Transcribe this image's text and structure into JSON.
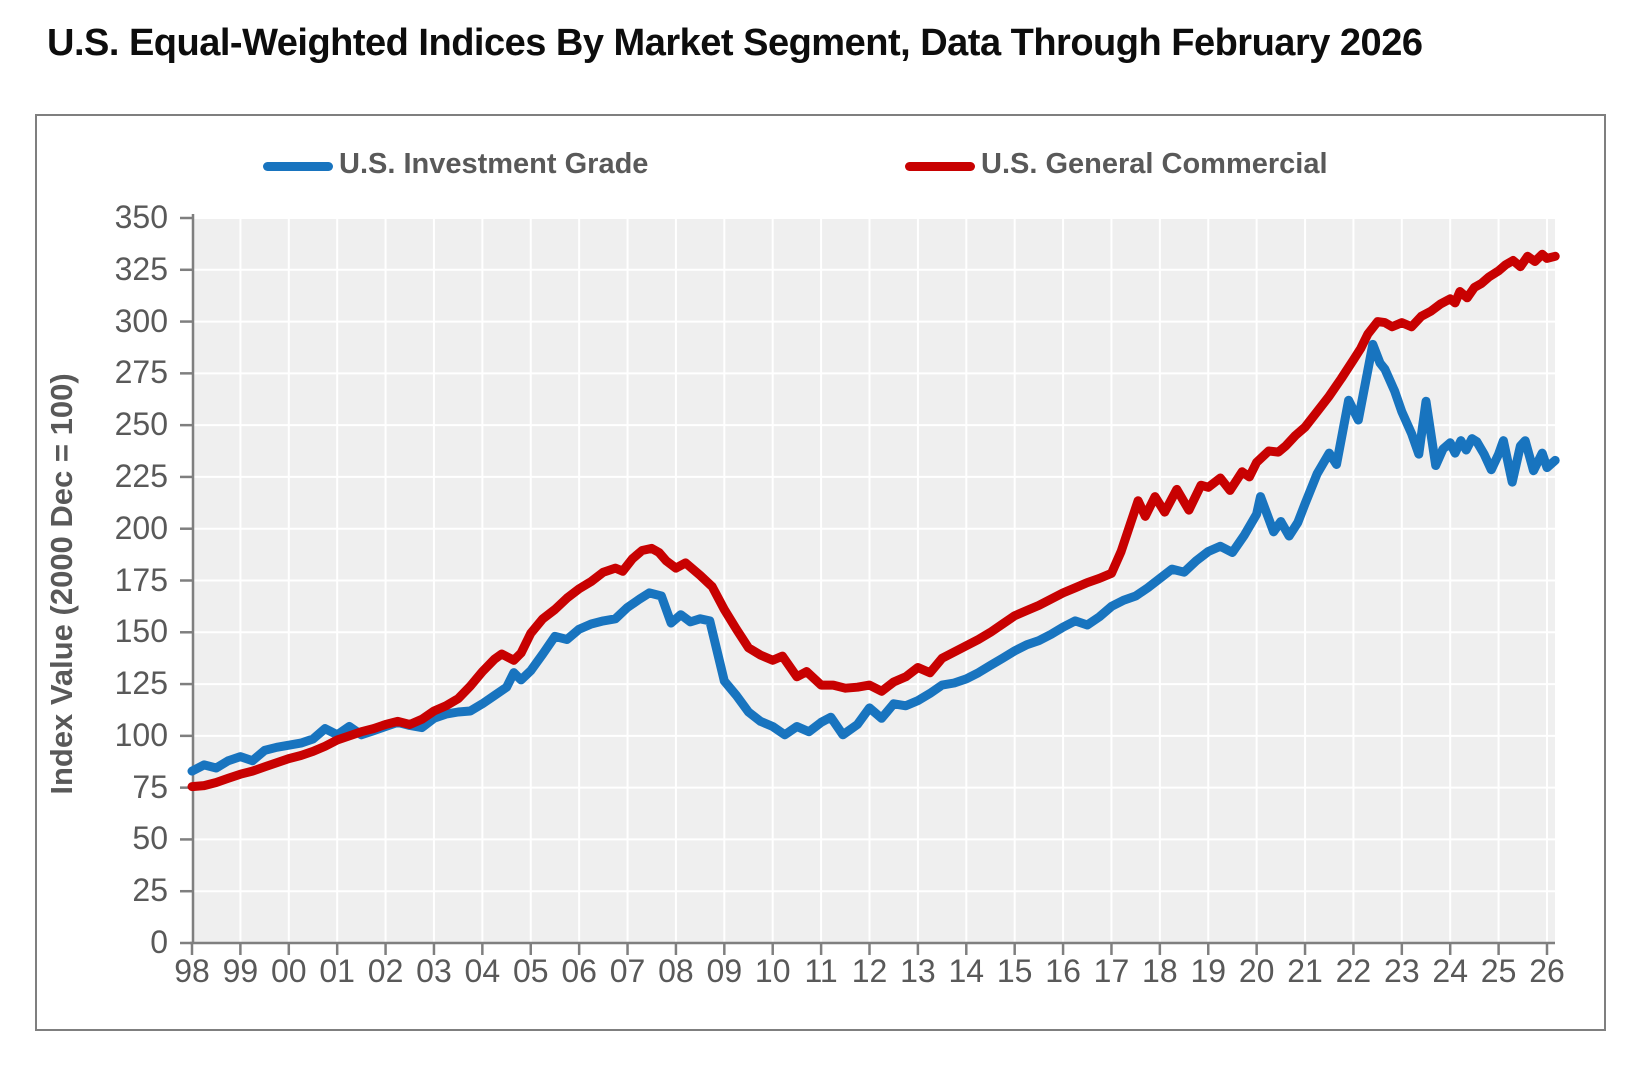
{
  "page": {
    "title": "U.S. Equal-Weighted Indices By Market Segment, Data Through February 2026"
  },
  "chart_data": {
    "type": "line",
    "title": "U.S. Equal-Weighted Indices By Market Segment, Data Through February 2026",
    "xlabel": "",
    "ylabel": "Index Value (2000 Dec = 100)",
    "ylim": [
      0,
      350
    ],
    "y_ticks": [
      0,
      25,
      50,
      75,
      100,
      125,
      150,
      175,
      200,
      225,
      250,
      275,
      300,
      325,
      350
    ],
    "x_range": [
      1998,
      2026.17
    ],
    "x_tick_years": [
      1998,
      1999,
      2000,
      2001,
      2002,
      2003,
      2004,
      2005,
      2006,
      2007,
      2008,
      2009,
      2010,
      2011,
      2012,
      2013,
      2014,
      2015,
      2016,
      2017,
      2018,
      2019,
      2020,
      2021,
      2022,
      2023,
      2024,
      2025,
      2026
    ],
    "x_tick_labels": [
      "98",
      "99",
      "00",
      "01",
      "02",
      "03",
      "04",
      "05",
      "06",
      "07",
      "08",
      "09",
      "10",
      "11",
      "12",
      "13",
      "14",
      "15",
      "16",
      "17",
      "18",
      "19",
      "20",
      "21",
      "22",
      "23",
      "24",
      "25",
      "26"
    ],
    "grid": true,
    "legend_position": "top",
    "plot_bg": "#efefef",
    "gridline_color": "#ffffff",
    "axis_color": "#7f7f7f",
    "tick_text_color": "#595959",
    "series": [
      {
        "name": "U.S. Investment Grade",
        "color": "#1874bf",
        "points": [
          [
            1998.0,
            83
          ],
          [
            1998.25,
            86
          ],
          [
            1998.5,
            84.5
          ],
          [
            1998.75,
            88
          ],
          [
            1999.0,
            90
          ],
          [
            1999.25,
            88
          ],
          [
            1999.5,
            93
          ],
          [
            1999.75,
            94.5
          ],
          [
            2000.0,
            95.5
          ],
          [
            2000.25,
            96.5
          ],
          [
            2000.5,
            98.5
          ],
          [
            2000.75,
            103.5
          ],
          [
            2001.0,
            100.5
          ],
          [
            2001.25,
            104.5
          ],
          [
            2001.5,
            100.5
          ],
          [
            2001.75,
            102.5
          ],
          [
            2002.0,
            104.5
          ],
          [
            2002.25,
            106.5
          ],
          [
            2002.5,
            105
          ],
          [
            2002.75,
            104
          ],
          [
            2003.0,
            108.5
          ],
          [
            2003.25,
            110.5
          ],
          [
            2003.5,
            111.5
          ],
          [
            2003.75,
            112
          ],
          [
            2004.0,
            115.5
          ],
          [
            2004.25,
            119.5
          ],
          [
            2004.5,
            123.5
          ],
          [
            2004.65,
            130.5
          ],
          [
            2004.8,
            127
          ],
          [
            2005.0,
            131.5
          ],
          [
            2005.25,
            139.5
          ],
          [
            2005.5,
            148
          ],
          [
            2005.75,
            146.5
          ],
          [
            2006.0,
            151.5
          ],
          [
            2006.25,
            154
          ],
          [
            2006.5,
            155.5
          ],
          [
            2006.75,
            156.5
          ],
          [
            2007.0,
            162
          ],
          [
            2007.25,
            166
          ],
          [
            2007.45,
            169
          ],
          [
            2007.7,
            167.5
          ],
          [
            2007.9,
            154.5
          ],
          [
            2008.1,
            158.5
          ],
          [
            2008.3,
            155
          ],
          [
            2008.5,
            156.5
          ],
          [
            2008.7,
            155.5
          ],
          [
            2009.0,
            126.5
          ],
          [
            2009.25,
            119.5
          ],
          [
            2009.5,
            111.5
          ],
          [
            2009.75,
            107
          ],
          [
            2010.0,
            104.5
          ],
          [
            2010.25,
            100.5
          ],
          [
            2010.5,
            104.5
          ],
          [
            2010.75,
            102
          ],
          [
            2011.0,
            106.5
          ],
          [
            2011.2,
            109
          ],
          [
            2011.45,
            100.5
          ],
          [
            2011.75,
            105.5
          ],
          [
            2012.0,
            113.5
          ],
          [
            2012.25,
            108.5
          ],
          [
            2012.5,
            115.5
          ],
          [
            2012.75,
            114.5
          ],
          [
            2013.0,
            117
          ],
          [
            2013.25,
            120.5
          ],
          [
            2013.5,
            124.5
          ],
          [
            2013.75,
            125.5
          ],
          [
            2014.0,
            127.5
          ],
          [
            2014.25,
            130.5
          ],
          [
            2014.5,
            134
          ],
          [
            2014.75,
            137.5
          ],
          [
            2015.0,
            141
          ],
          [
            2015.25,
            144
          ],
          [
            2015.5,
            146
          ],
          [
            2015.75,
            149
          ],
          [
            2016.0,
            152.5
          ],
          [
            2016.25,
            155.5
          ],
          [
            2016.5,
            153.5
          ],
          [
            2016.75,
            157.5
          ],
          [
            2017.0,
            162.5
          ],
          [
            2017.25,
            165.5
          ],
          [
            2017.5,
            167.5
          ],
          [
            2017.75,
            171.5
          ],
          [
            2018.0,
            176
          ],
          [
            2018.25,
            180.5
          ],
          [
            2018.5,
            179
          ],
          [
            2018.75,
            184.5
          ],
          [
            2019.0,
            189
          ],
          [
            2019.25,
            191.5
          ],
          [
            2019.5,
            188.5
          ],
          [
            2019.75,
            197
          ],
          [
            2020.0,
            207
          ],
          [
            2020.08,
            215.5
          ],
          [
            2020.35,
            198.5
          ],
          [
            2020.5,
            203.5
          ],
          [
            2020.67,
            196.5
          ],
          [
            2020.85,
            203
          ],
          [
            2021.0,
            212
          ],
          [
            2021.25,
            226.5
          ],
          [
            2021.5,
            236.5
          ],
          [
            2021.65,
            231
          ],
          [
            2021.9,
            262
          ],
          [
            2022.1,
            252.5
          ],
          [
            2022.4,
            289
          ],
          [
            2022.55,
            280
          ],
          [
            2022.65,
            277
          ],
          [
            2022.85,
            266.5
          ],
          [
            2023.0,
            256.5
          ],
          [
            2023.2,
            246
          ],
          [
            2023.35,
            236
          ],
          [
            2023.5,
            261.5
          ],
          [
            2023.7,
            230.5
          ],
          [
            2023.85,
            238.5
          ],
          [
            2024.0,
            241.5
          ],
          [
            2024.1,
            236.5
          ],
          [
            2024.22,
            242.5
          ],
          [
            2024.33,
            238
          ],
          [
            2024.45,
            243.5
          ],
          [
            2024.55,
            242
          ],
          [
            2024.7,
            236
          ],
          [
            2024.85,
            228.5
          ],
          [
            2025.0,
            236
          ],
          [
            2025.1,
            242.5
          ],
          [
            2025.28,
            222.5
          ],
          [
            2025.45,
            240
          ],
          [
            2025.55,
            242.5
          ],
          [
            2025.72,
            228
          ],
          [
            2025.9,
            236.5
          ],
          [
            2026.0,
            229.5
          ],
          [
            2026.17,
            233
          ]
        ]
      },
      {
        "name": "U.S. General Commercial",
        "color": "#c80101",
        "points": [
          [
            1998.0,
            75.5
          ],
          [
            1998.25,
            76
          ],
          [
            1998.5,
            77.5
          ],
          [
            1998.75,
            79.5
          ],
          [
            1999.0,
            81.5
          ],
          [
            1999.25,
            83
          ],
          [
            1999.5,
            85
          ],
          [
            1999.75,
            87
          ],
          [
            2000.0,
            89
          ],
          [
            2000.25,
            90.5
          ],
          [
            2000.5,
            92.5
          ],
          [
            2000.75,
            95
          ],
          [
            2001.0,
            98
          ],
          [
            2001.25,
            100
          ],
          [
            2001.5,
            102
          ],
          [
            2001.75,
            103.5
          ],
          [
            2002.0,
            105.5
          ],
          [
            2002.25,
            107
          ],
          [
            2002.5,
            105.5
          ],
          [
            2002.75,
            108
          ],
          [
            2003.0,
            112
          ],
          [
            2003.25,
            114.5
          ],
          [
            2003.5,
            118
          ],
          [
            2003.75,
            124
          ],
          [
            2004.0,
            131
          ],
          [
            2004.25,
            137
          ],
          [
            2004.4,
            139.5
          ],
          [
            2004.65,
            136.5
          ],
          [
            2004.8,
            140
          ],
          [
            2005.0,
            149.5
          ],
          [
            2005.25,
            156.5
          ],
          [
            2005.5,
            161
          ],
          [
            2005.75,
            166.5
          ],
          [
            2006.0,
            171
          ],
          [
            2006.25,
            174.5
          ],
          [
            2006.5,
            179
          ],
          [
            2006.75,
            181
          ],
          [
            2006.9,
            179.5
          ],
          [
            2007.1,
            185.5
          ],
          [
            2007.3,
            189.5
          ],
          [
            2007.5,
            190.5
          ],
          [
            2007.65,
            188.5
          ],
          [
            2007.8,
            184.5
          ],
          [
            2008.0,
            181
          ],
          [
            2008.2,
            183.5
          ],
          [
            2008.5,
            177.5
          ],
          [
            2008.75,
            172
          ],
          [
            2009.0,
            161
          ],
          [
            2009.25,
            151.5
          ],
          [
            2009.5,
            142.5
          ],
          [
            2009.75,
            139
          ],
          [
            2010.0,
            136.5
          ],
          [
            2010.2,
            138.5
          ],
          [
            2010.5,
            128.5
          ],
          [
            2010.7,
            131
          ],
          [
            2011.0,
            124.5
          ],
          [
            2011.25,
            124.5
          ],
          [
            2011.5,
            123
          ],
          [
            2011.75,
            123.5
          ],
          [
            2012.0,
            124.5
          ],
          [
            2012.25,
            121.5
          ],
          [
            2012.5,
            126
          ],
          [
            2012.75,
            128.5
          ],
          [
            2013.0,
            133
          ],
          [
            2013.25,
            130.5
          ],
          [
            2013.5,
            137.5
          ],
          [
            2013.75,
            140.5
          ],
          [
            2014.0,
            143.5
          ],
          [
            2014.25,
            146.5
          ],
          [
            2014.5,
            150
          ],
          [
            2014.75,
            154
          ],
          [
            2015.0,
            158
          ],
          [
            2015.25,
            160.5
          ],
          [
            2015.5,
            163
          ],
          [
            2015.75,
            166
          ],
          [
            2016.0,
            169
          ],
          [
            2016.25,
            171.5
          ],
          [
            2016.5,
            174
          ],
          [
            2016.75,
            176
          ],
          [
            2017.0,
            178.5
          ],
          [
            2017.2,
            189
          ],
          [
            2017.4,
            203
          ],
          [
            2017.55,
            213.5
          ],
          [
            2017.7,
            206
          ],
          [
            2017.9,
            215.5
          ],
          [
            2018.1,
            208
          ],
          [
            2018.35,
            219
          ],
          [
            2018.6,
            209
          ],
          [
            2018.85,
            221
          ],
          [
            2019.0,
            220
          ],
          [
            2019.25,
            224.5
          ],
          [
            2019.45,
            218.5
          ],
          [
            2019.7,
            227.5
          ],
          [
            2019.85,
            225
          ],
          [
            2020.0,
            232
          ],
          [
            2020.25,
            237.5
          ],
          [
            2020.45,
            237
          ],
          [
            2020.6,
            240
          ],
          [
            2020.8,
            245
          ],
          [
            2021.0,
            249
          ],
          [
            2021.25,
            256.5
          ],
          [
            2021.5,
            264
          ],
          [
            2021.75,
            272.5
          ],
          [
            2022.0,
            281.5
          ],
          [
            2022.15,
            287
          ],
          [
            2022.3,
            294
          ],
          [
            2022.5,
            300
          ],
          [
            2022.65,
            299.5
          ],
          [
            2022.8,
            297.5
          ],
          [
            2023.0,
            299.5
          ],
          [
            2023.2,
            297.5
          ],
          [
            2023.4,
            302.5
          ],
          [
            2023.6,
            305
          ],
          [
            2023.8,
            308.5
          ],
          [
            2024.0,
            311
          ],
          [
            2024.1,
            309
          ],
          [
            2024.2,
            314.5
          ],
          [
            2024.35,
            311.5
          ],
          [
            2024.5,
            316.5
          ],
          [
            2024.65,
            318.5
          ],
          [
            2024.8,
            321.5
          ],
          [
            2025.0,
            324.5
          ],
          [
            2025.15,
            327.5
          ],
          [
            2025.3,
            329.5
          ],
          [
            2025.45,
            326.5
          ],
          [
            2025.6,
            331.5
          ],
          [
            2025.75,
            329
          ],
          [
            2025.9,
            332.5
          ],
          [
            2026.0,
            330.5
          ],
          [
            2026.17,
            331.5
          ]
        ]
      }
    ]
  }
}
